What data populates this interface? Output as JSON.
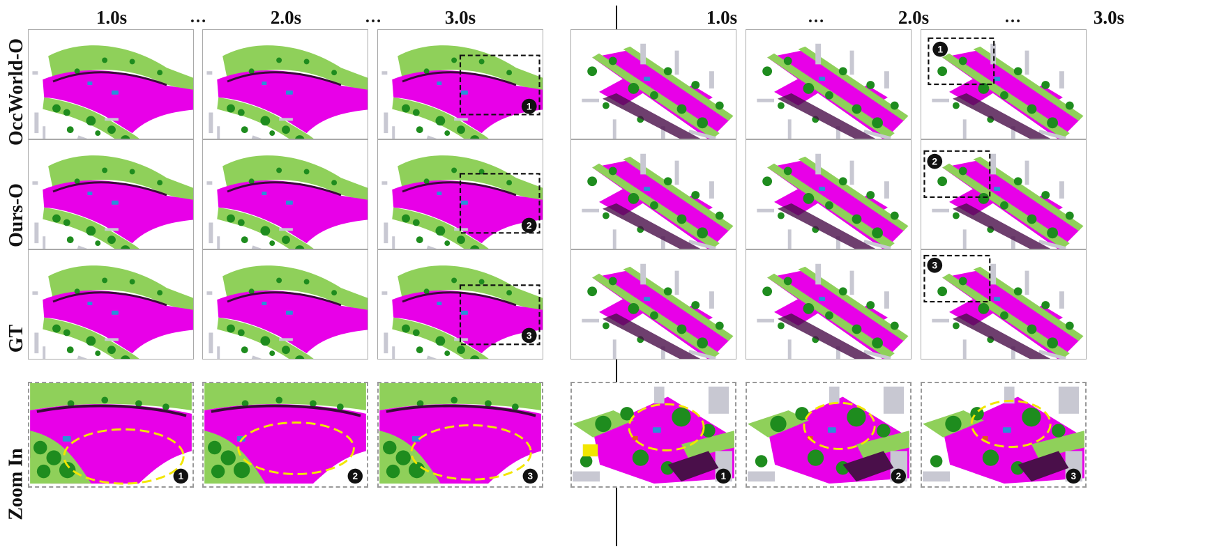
{
  "headers": {
    "left": [
      "1.0s",
      "2.0s",
      "3.0s"
    ],
    "right": [
      "1.0s",
      "2.0s",
      "3.0s"
    ],
    "ellipsis": "…"
  },
  "row_labels": [
    "OccWorld-O",
    "Ours-O",
    "GT",
    "Zoom In"
  ],
  "markers": [
    "1",
    "2",
    "3"
  ],
  "colors": {
    "drivable_surface": "#e800e8",
    "sidewalk_terrain": "#8fd05a",
    "vegetation": "#1e8c1e",
    "manmade": "#c8c8d2",
    "vehicle": "#2a8fd8",
    "other_flat": "#4a0f4a",
    "highlight_box": "#111111",
    "highlight_ellipse": "#f2e600"
  }
}
